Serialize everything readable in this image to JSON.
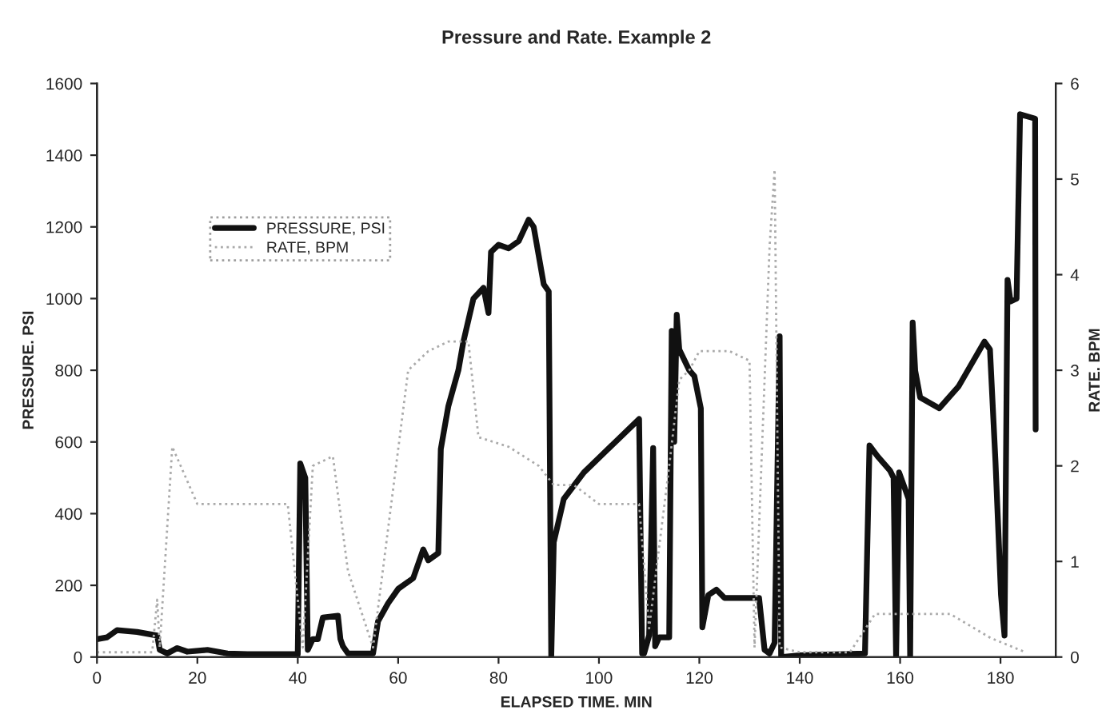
{
  "chart_data": {
    "type": "line",
    "title": "Pressure and Rate. Example 2",
    "xlabel": "ELAPSED TIME. MIN",
    "ylabel": "PRESSURE. PSI",
    "y2label": "RATE. BPM",
    "xlim": [
      0,
      191
    ],
    "xticks": [
      0,
      20,
      40,
      60,
      80,
      100,
      120,
      140,
      160,
      180
    ],
    "ylim": [
      0,
      1600
    ],
    "yticks": [
      0,
      200,
      400,
      600,
      800,
      1000,
      1200,
      1400,
      1600
    ],
    "y2lim": [
      0,
      6
    ],
    "y2ticks": [
      0,
      1,
      2,
      3,
      4,
      5,
      6
    ],
    "grid": false,
    "legend": "top left",
    "marker": "none",
    "series": [
      {
        "name": "PRESSURE, PSI",
        "color": "#111111",
        "line_style": "solid",
        "x": [
          0,
          2,
          4,
          8,
          12,
          12.5,
          14,
          16,
          18,
          22,
          26,
          30,
          40,
          40.5,
          41.5,
          42,
          43,
          44,
          45,
          48,
          48.5,
          49,
          50,
          55,
          56,
          58,
          60,
          63,
          65,
          66,
          68,
          68.5,
          70,
          72,
          73,
          75,
          77,
          78,
          78.5,
          80,
          82,
          84,
          86,
          87,
          89,
          90,
          90.5,
          91,
          93,
          97,
          108,
          108.6,
          109,
          110,
          110.8,
          111.2,
          112,
          114,
          114.5,
          115,
          115.5,
          116,
          118,
          119,
          120.3,
          120.6,
          121.8,
          123.4,
          125,
          131.9,
          133,
          134,
          135,
          136,
          136.3,
          140,
          153,
          153.9,
          155.5,
          158,
          158.7,
          159.2,
          159.8,
          161.7,
          162,
          162.5,
          163,
          164,
          167.8,
          171.6,
          176.8,
          177.9,
          179,
          180.1,
          180.8,
          181.4,
          182,
          183.2,
          183.9,
          186.9,
          187
        ],
        "values": [
          50,
          55,
          75,
          70,
          60,
          20,
          10,
          25,
          15,
          20,
          10,
          8,
          8,
          540,
          500,
          20,
          50,
          50,
          110,
          115,
          50,
          30,
          10,
          10,
          100,
          150,
          190,
          220,
          300,
          270,
          290,
          580,
          700,
          800,
          880,
          1000,
          1030,
          960,
          1130,
          1150,
          1140,
          1160,
          1220,
          1200,
          1040,
          1020,
          0,
          320,
          441,
          515,
          664,
          10,
          10,
          60,
          583,
          30,
          55,
          55,
          910,
          600,
          955,
          858,
          800,
          784,
          694,
          83,
          173,
          188,
          165,
          165,
          20,
          10,
          40,
          895,
          0,
          5,
          10,
          590,
          560,
          520,
          500,
          0,
          515,
          441,
          0,
          933,
          799,
          724,
          694,
          754,
          880,
          858,
          545,
          173,
          60,
          1052,
          992,
          1000,
          1514,
          1502,
          635
        ]
      },
      {
        "name": "RATE, BPM",
        "color": "#aaaaaa",
        "line_style": "dotted",
        "axis": "y2",
        "x": [
          0,
          11,
          12,
          12.5,
          15,
          20,
          30,
          38,
          41,
          43,
          47,
          50,
          55,
          62,
          66,
          70,
          74,
          76,
          82,
          88,
          91,
          95,
          100,
          108,
          110,
          114,
          116,
          118,
          120,
          126,
          130,
          131,
          134,
          135,
          136,
          140,
          150,
          155,
          170,
          178,
          185
        ],
        "values": [
          0.05,
          0.05,
          0.6,
          0.1,
          2.2,
          1.6,
          1.6,
          1.6,
          0.1,
          2.0,
          2.1,
          0.9,
          0.1,
          3.0,
          3.2,
          3.3,
          3.3,
          2.3,
          2.2,
          2.0,
          1.8,
          1.8,
          1.6,
          1.6,
          0.3,
          2.0,
          2.9,
          3.0,
          3.2,
          3.2,
          3.1,
          0.1,
          4.3,
          5.1,
          0.1,
          0.05,
          0.05,
          0.45,
          0.45,
          0.2,
          0.05
        ]
      }
    ]
  }
}
